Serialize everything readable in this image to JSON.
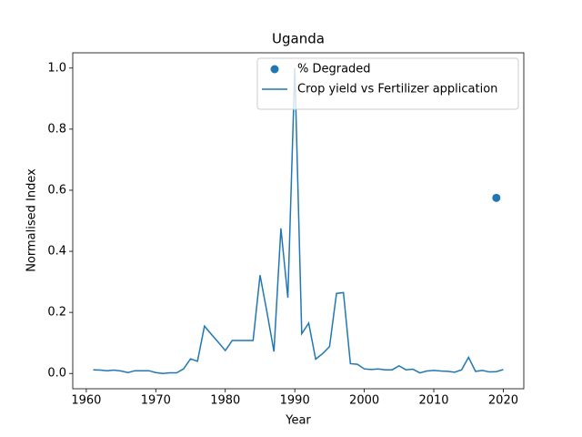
{
  "chart_data": {
    "type": "line",
    "title": "Uganda",
    "xlabel": "Year",
    "ylabel": "Normalised Index",
    "xlim": [
      1958.05,
      2022.95
    ],
    "ylim": [
      -0.05,
      1.05
    ],
    "xticks": [
      1960,
      1970,
      1980,
      1990,
      2000,
      2010,
      2020
    ],
    "yticks": [
      {
        "value": 0,
        "label": "0.0"
      },
      {
        "value": 0.2,
        "label": "0.2"
      },
      {
        "value": 0.4,
        "label": "0.4"
      },
      {
        "value": 0.6,
        "label": "0.6"
      },
      {
        "value": 0.8,
        "label": "0.8"
      },
      {
        "value": 1,
        "label": "1.0"
      }
    ],
    "legend": "upper right",
    "grid": false,
    "series": [
      {
        "name": "% Degraded",
        "type": "scatter",
        "color": "#1f77b4",
        "x": [
          2019
        ],
        "values": [
          0.575
        ]
      },
      {
        "name": "Crop yield vs Fertilizer application",
        "type": "line",
        "color": "#1f77b4",
        "x": [
          1961,
          1962,
          1963,
          1964,
          1965,
          1966,
          1967,
          1968,
          1969,
          1970,
          1971,
          1972,
          1973,
          1974,
          1975,
          1976,
          1977,
          1978,
          1979,
          1980,
          1981,
          1982,
          1983,
          1984,
          1985,
          1986,
          1987,
          1988,
          1989,
          1990,
          1991,
          1992,
          1993,
          1994,
          1995,
          1996,
          1997,
          1998,
          1999,
          2000,
          2001,
          2002,
          2003,
          2004,
          2005,
          2006,
          2007,
          2008,
          2009,
          2010,
          2011,
          2012,
          2013,
          2014,
          2015,
          2016,
          2017,
          2018,
          2019,
          2020
        ],
        "values": [
          0.012,
          0.011,
          0.009,
          0.011,
          0.008,
          0.003,
          0.009,
          0.009,
          0.009,
          0.003,
          0.0,
          0.002,
          0.002,
          0.015,
          0.048,
          0.04,
          0.155,
          0.128,
          0.102,
          0.075,
          0.108,
          0.108,
          0.108,
          0.108,
          0.322,
          0.2,
          0.072,
          0.475,
          0.248,
          1.0,
          0.13,
          0.165,
          0.047,
          0.065,
          0.088,
          0.262,
          0.265,
          0.032,
          0.03,
          0.015,
          0.013,
          0.015,
          0.012,
          0.012,
          0.025,
          0.012,
          0.014,
          0.002,
          0.008,
          0.01,
          0.008,
          0.007,
          0.004,
          0.012,
          0.053,
          0.007,
          0.01,
          0.005,
          0.006,
          0.013
        ]
      }
    ]
  }
}
